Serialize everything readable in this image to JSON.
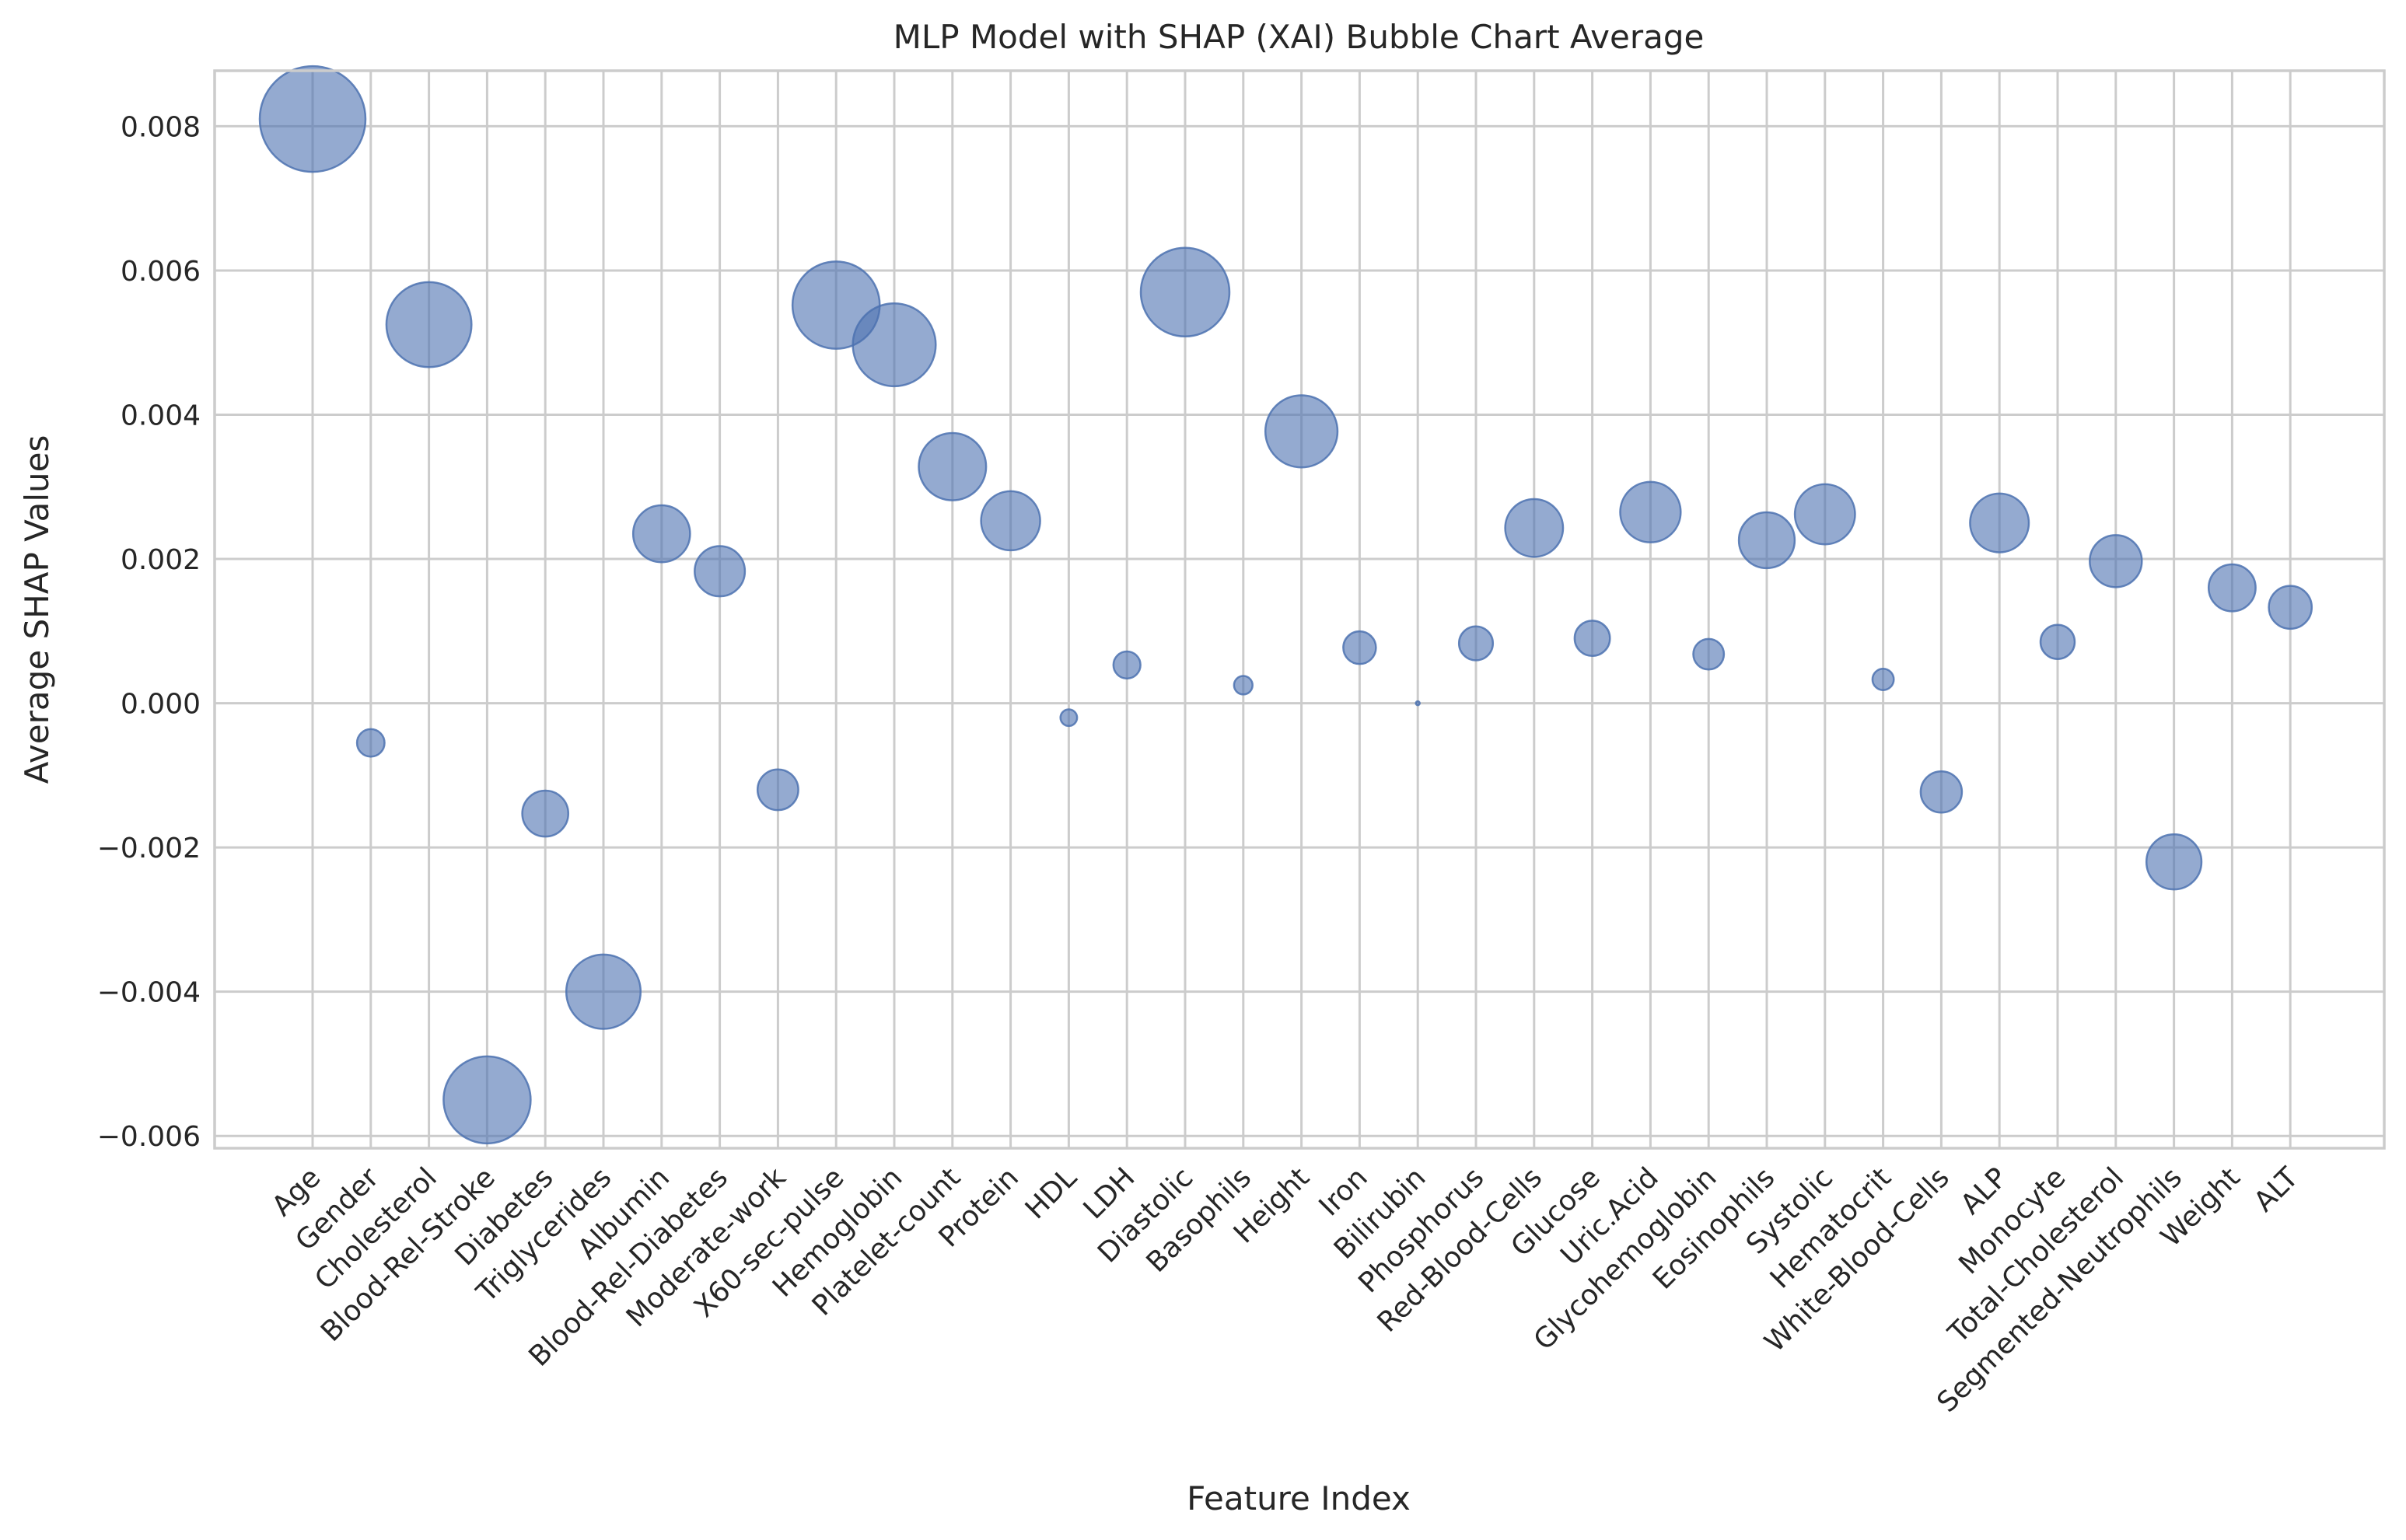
{
  "chart_data": {
    "type": "scatter",
    "title": "MLP Model with SHAP (XAI) Bubble Chart Average",
    "xlabel": "Feature Index",
    "ylabel": "Average SHAP Values",
    "categories": [
      "Age",
      "Gender",
      "Cholesterol",
      "Blood-Rel-Stroke",
      "Diabetes",
      "Triglycerides",
      "Albumin",
      "Blood-Rel-Diabetes",
      "Moderate-work",
      "X60-sec-pulse",
      "Hemoglobin",
      "Platelet-count",
      "Protein",
      "HDL",
      "LDH",
      "Diastolic",
      "Basophils",
      "Height",
      "Iron",
      "Bilirubin",
      "Phosphorus",
      "Red-Blood-Cells",
      "Glucose",
      "Uric.Acid",
      "Glycohemoglobin",
      "Eosinophils",
      "Systolic",
      "Hematocrit",
      "White-Blood-Cells",
      "ALP",
      "Monocyte",
      "Total-Cholesterol",
      "Segmented-Neutrophils",
      "Weight",
      "ALT"
    ],
    "values": [
      0.0081,
      -0.00055,
      0.00525,
      -0.0055,
      -0.00153,
      -0.004,
      0.00235,
      0.00183,
      -0.0012,
      0.00552,
      0.00497,
      0.00328,
      0.00253,
      -0.0002,
      0.00053,
      0.0057,
      0.00025,
      0.00377,
      0.00077,
      0.0,
      0.00083,
      0.00243,
      0.0009,
      0.00265,
      0.00068,
      0.00226,
      0.00262,
      0.00033,
      -0.00123,
      0.0025,
      0.00085,
      0.00197,
      -0.0022,
      0.0016,
      0.00133
    ],
    "ylim": [
      -0.00617,
      0.00877
    ],
    "yticks": [
      -0.006,
      -0.004,
      -0.002,
      0.0,
      0.002,
      0.004,
      0.006,
      0.008
    ],
    "ytick_labels": [
      "−0.006",
      "−0.004",
      "−0.002",
      "0.000",
      "0.002",
      "0.004",
      "0.006",
      "0.008"
    ],
    "grid": true,
    "color": "#4c72b0"
  }
}
